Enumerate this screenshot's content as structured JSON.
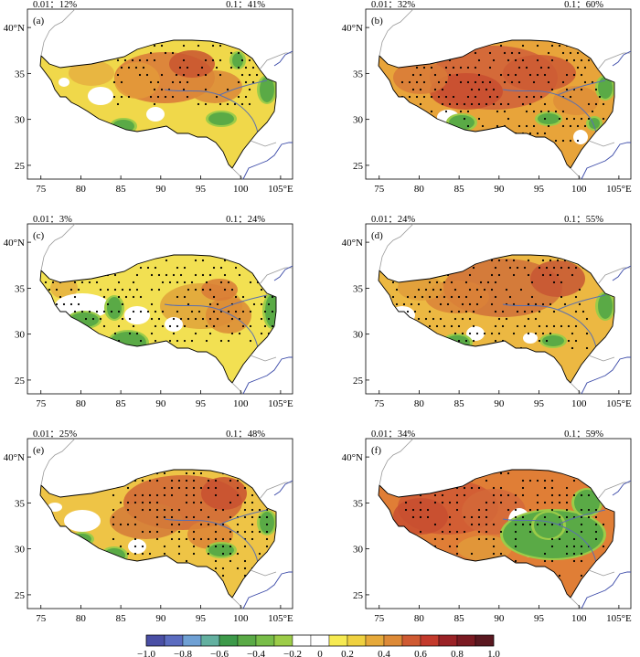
{
  "panels": [
    {
      "label": "(a)",
      "sig01": "0.01：12%",
      "sig1": "0.1：41%"
    },
    {
      "label": "(b)",
      "sig01": "0.01：32%",
      "sig1": "0.1：60%"
    },
    {
      "label": "(c)",
      "sig01": "0.01：3%",
      "sig1": "0.1：24%"
    },
    {
      "label": "(d)",
      "sig01": "0.01：24%",
      "sig1": "0.1：55%"
    },
    {
      "label": "(e)",
      "sig01": "0.01：25%",
      "sig1": "0.1：48%"
    },
    {
      "label": "(f)",
      "sig01": "0.01：34%",
      "sig1": "0.1：59%"
    }
  ],
  "x_ticks": [
    "75",
    "80",
    "85",
    "90",
    "95",
    "100",
    "105°E"
  ],
  "y_ticks": [
    "40°N",
    "35",
    "30",
    "25"
  ],
  "colorbar": {
    "colors": [
      "#4a4fa5",
      "#5b6cc0",
      "#6fa0d4",
      "#63b0a0",
      "#3d9a4a",
      "#5aaa46",
      "#78bd48",
      "#9ccc48",
      "#ffffff",
      "#ffffff",
      "#f6ea52",
      "#efd140",
      "#e6a93a",
      "#dd8a37",
      "#cf5a32",
      "#c33a2c",
      "#9a2226",
      "#7a1a22",
      "#5a1820"
    ],
    "tick_labels": [
      "−1.0",
      "−0.8",
      "−0.6",
      "−0.4",
      "−0.2",
      "0",
      "0.2",
      "0.4",
      "0.6",
      "0.8",
      "1.0"
    ]
  },
  "colors": {
    "tp_outline": "#000000",
    "river": "#5a6fb0",
    "border": "#9a9a9a",
    "coast": "#3b4aa8",
    "stipple": "#000000"
  }
}
